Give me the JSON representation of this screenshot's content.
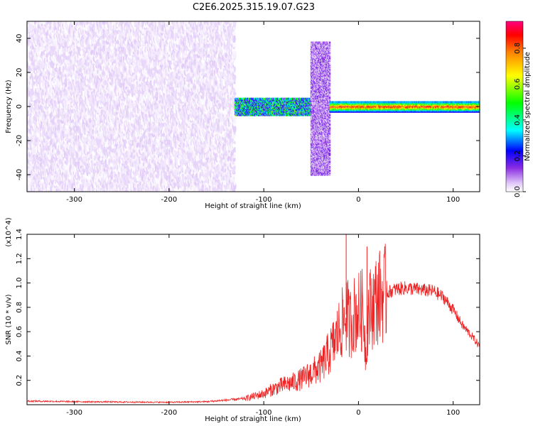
{
  "title": "C2E6.2025.315.19.07.G23",
  "chart_data": [
    {
      "type": "heatmap",
      "panel": "top",
      "xlabel": "Height of straight line (km)",
      "ylabel": "Frequency (Hz)",
      "xlim": [
        -350,
        128
      ],
      "ylim": [
        -50,
        50
      ],
      "x_ticks": [
        -300,
        -200,
        -100,
        0,
        100
      ],
      "y_ticks": [
        -40,
        -20,
        0,
        20,
        40
      ],
      "colorbar": {
        "label": "Normalized spectral amplitude",
        "range": [
          0,
          0.95
        ],
        "ticks": [
          "0.0",
          "0.2",
          "0.4",
          "0.6",
          "0.8"
        ],
        "colormap": [
          "#ffffff",
          "#e0c8f8",
          "#8a2be2",
          "#0000ff",
          "#00ffff",
          "#00ff00",
          "#ffff00",
          "#ff8000",
          "#ff0000",
          "#ff0080"
        ]
      },
      "regions": [
        {
          "x_from": -350,
          "x_to": -130,
          "freq_from": -50,
          "freq_to": 50,
          "amplitude": [
            0.0,
            0.1
          ]
        },
        {
          "x_from": -130,
          "x_to": -50,
          "freq_from": -5,
          "freq_to": 5,
          "amplitude": [
            0.2,
            0.6
          ]
        },
        {
          "x_from": -50,
          "x_to": -30,
          "freq_from": -40,
          "freq_to": 38,
          "amplitude": [
            0.05,
            0.25
          ]
        },
        {
          "x_from": -30,
          "x_to": 128,
          "freq_from": -3,
          "freq_to": 3,
          "amplitude": [
            0.3,
            0.95
          ]
        }
      ]
    },
    {
      "type": "line",
      "panel": "bottom",
      "xlabel": "Height of straight line (km)",
      "ylabel": "SNR (10 * v/v)",
      "y_multiplier": "(x10^4)",
      "xlim": [
        -350,
        128
      ],
      "ylim": [
        0,
        14000
      ],
      "x_ticks": [
        -300,
        -200,
        -100,
        0,
        100
      ],
      "y_ticks": [
        "0.2",
        "0.4",
        "0.6",
        "0.8",
        "1.0",
        "1.2",
        "1.4"
      ],
      "line_color": "#ee2222",
      "series": [
        {
          "x": [
            -350,
            -300,
            -250,
            -200,
            -160,
            -120,
            -100,
            -90,
            -80,
            -70,
            -60,
            -50,
            -40,
            -30,
            -25,
            -20,
            -15,
            -12,
            -10,
            -5,
            0,
            5,
            8,
            10,
            15,
            20,
            30,
            40,
            50,
            60,
            70,
            80,
            90,
            100,
            110,
            120,
            128
          ],
          "values": [
            300,
            250,
            220,
            200,
            250,
            500,
            900,
            1300,
            1600,
            1800,
            2100,
            2600,
            3100,
            4400,
            5200,
            6200,
            7000,
            7600,
            6500,
            7400,
            7600,
            7800,
            4000,
            7600,
            8200,
            8800,
            9200,
            9500,
            9600,
            9500,
            9400,
            9300,
            8800,
            7800,
            6500,
            5600,
            4800
          ]
        }
      ],
      "spikes": [
        {
          "x": -13,
          "value": 14000
        },
        {
          "x": 9,
          "value": 13000
        }
      ]
    }
  ]
}
